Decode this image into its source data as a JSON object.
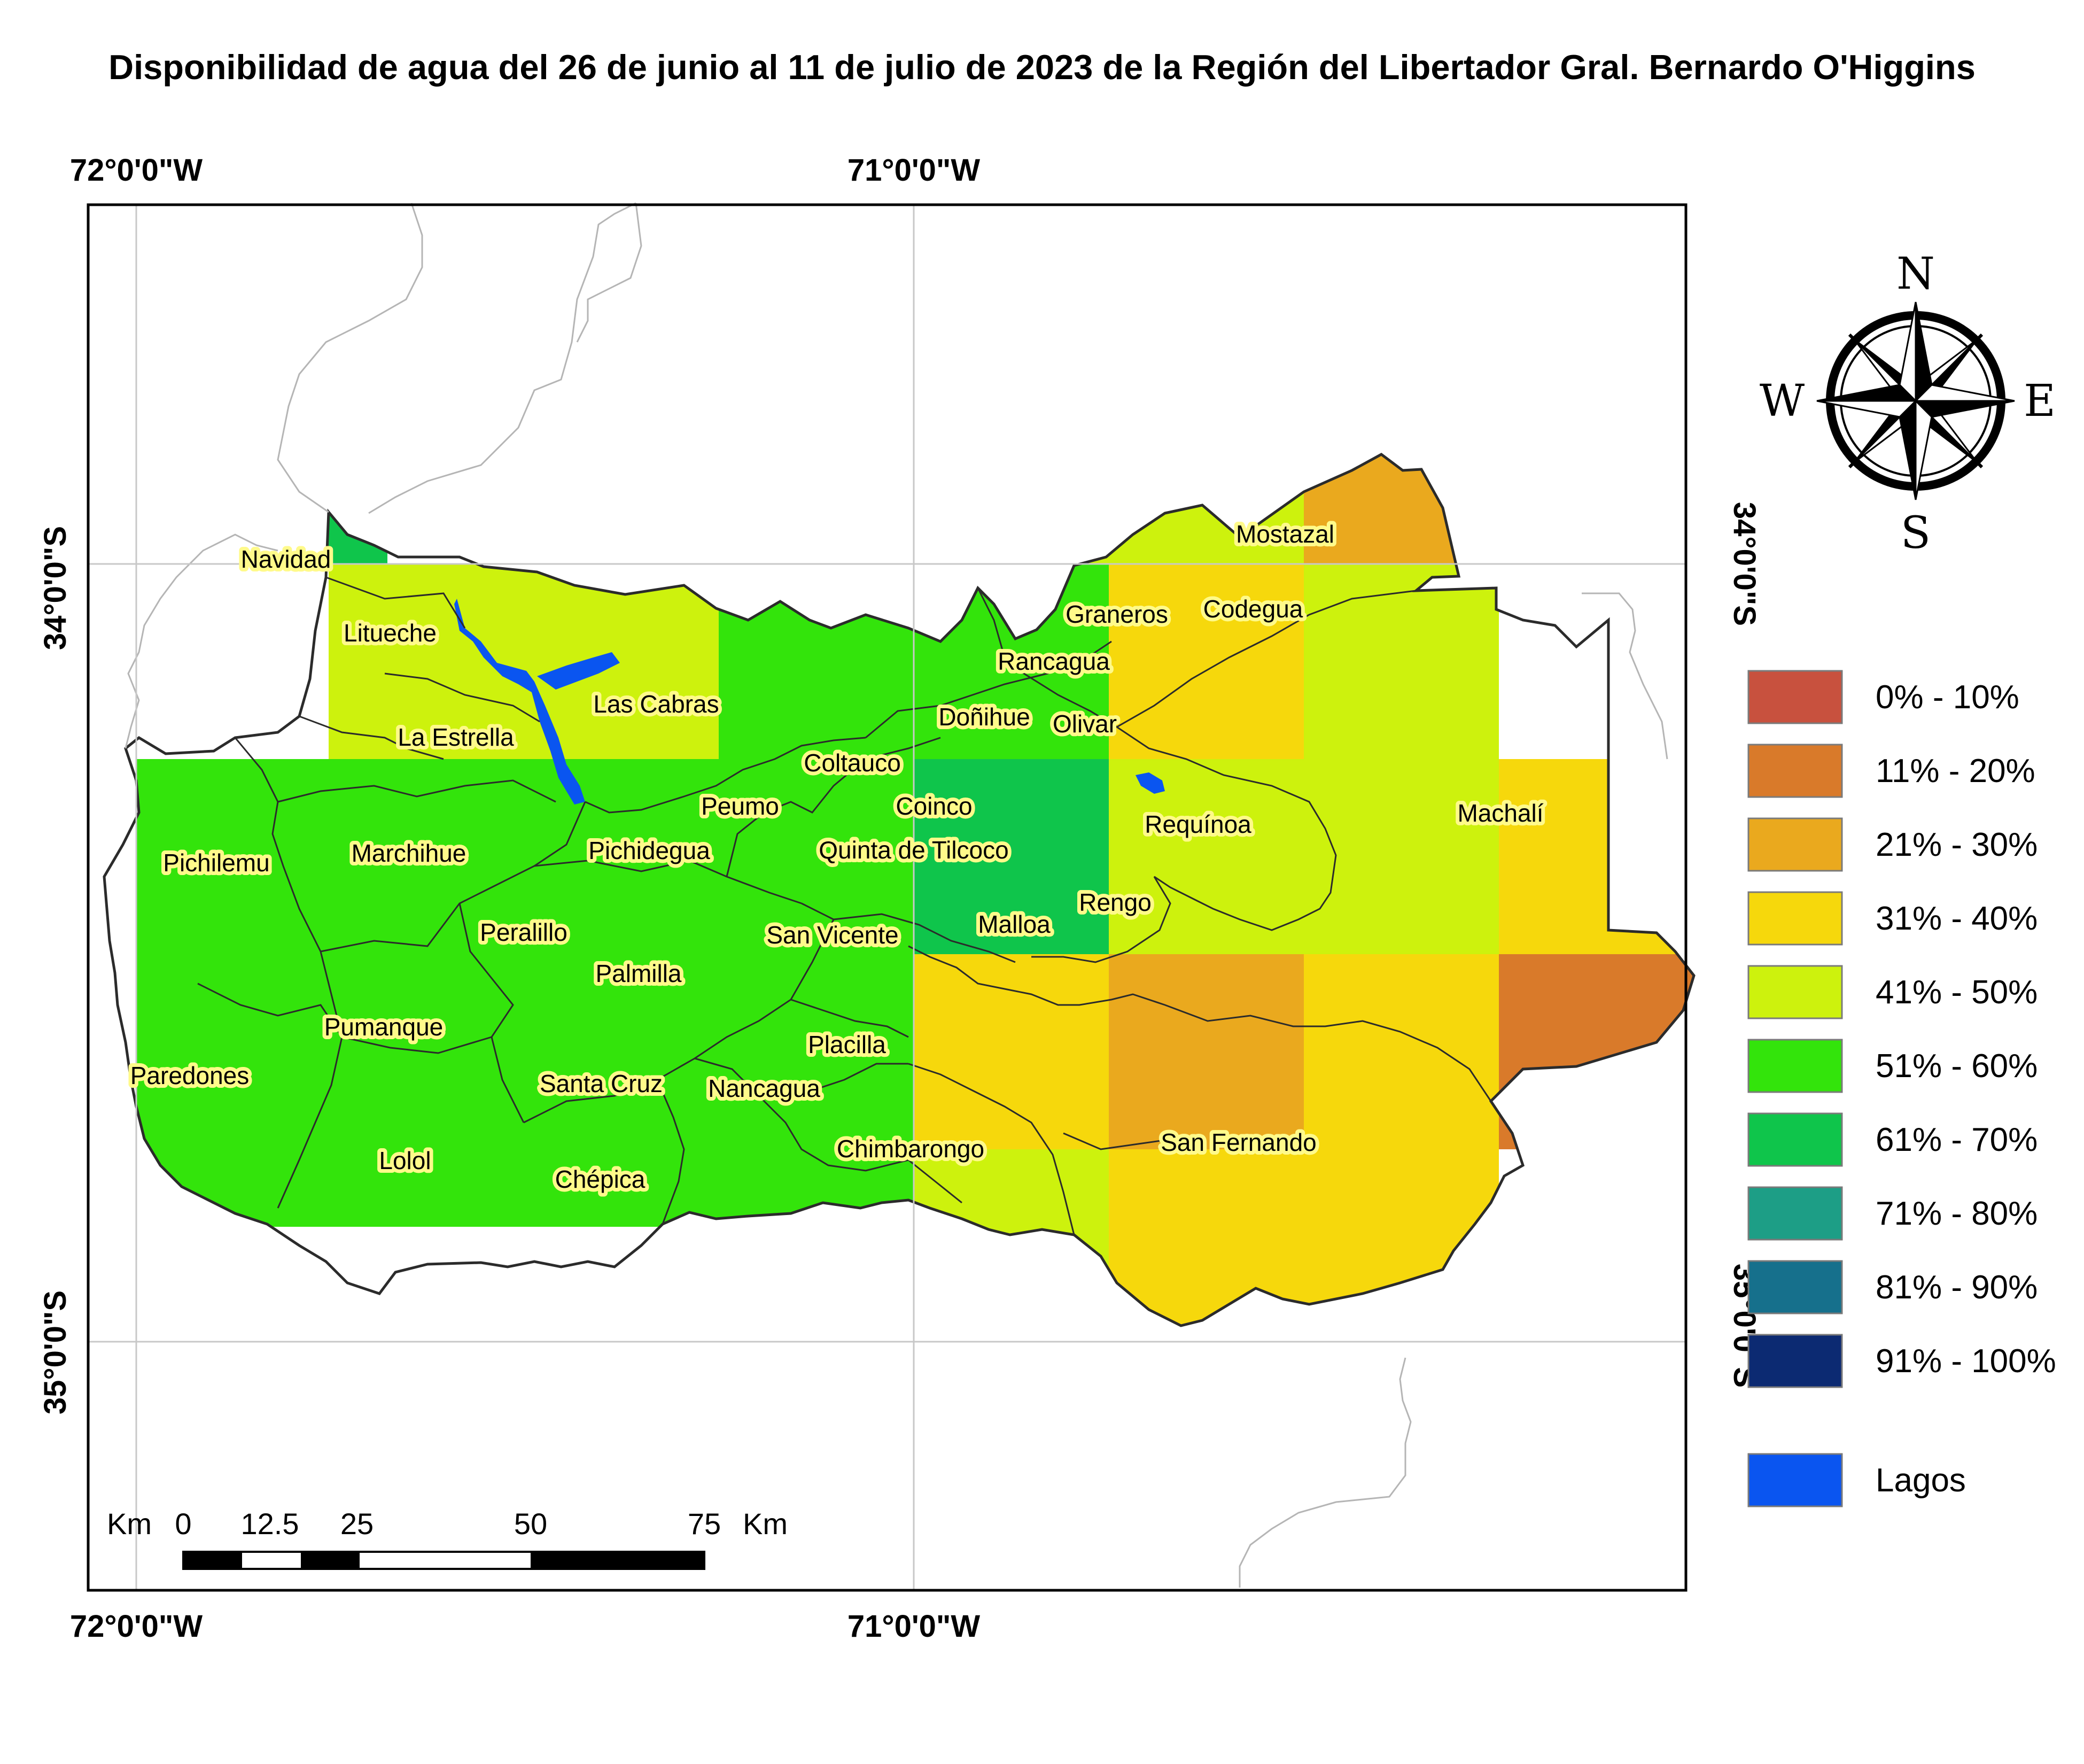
{
  "title": "Disponibilidad de agua del 26 de junio al 11 de julio de 2023 de la Región del Libertador Gral. Bernardo O'Higgins",
  "graticule": {
    "lon_top": [
      "72°0'0\"W",
      "71°0'0\"W"
    ],
    "lon_bottom": [
      "72°0'0\"W",
      "71°0'0\"W"
    ],
    "lat_left": [
      "34°0'0\"S",
      "35°0'0\"S"
    ],
    "lat_right": [
      "34°0'0\"S",
      "35°0'0\"S"
    ]
  },
  "compass": {
    "n": "N",
    "s": "S",
    "e": "E",
    "w": "W"
  },
  "legend": [
    {
      "label": "0% - 10%",
      "color": "#c8513e"
    },
    {
      "label": "11% - 20%",
      "color": "#d97a2a"
    },
    {
      "label": "21% - 30%",
      "color": "#eaa91e"
    },
    {
      "label": "31% - 40%",
      "color": "#f6d80c"
    },
    {
      "label": "41% - 50%",
      "color": "#cdf20d"
    },
    {
      "label": "51% - 60%",
      "color": "#33e40b"
    },
    {
      "label": "61% - 70%",
      "color": "#0fc54b"
    },
    {
      "label": "71% - 80%",
      "color": "#1d9e86"
    },
    {
      "label": "81% - 90%",
      "color": "#16708c"
    },
    {
      "label": "91% - 100%",
      "color": "#0c2a72"
    }
  ],
  "lakes_label": "Lagos",
  "lakes_color": "#0a55f0",
  "scale": {
    "unit": "Km",
    "ticks": [
      "0",
      "12.5",
      "25",
      "50",
      "75"
    ]
  },
  "towns": [
    "Navidad",
    "Litueche",
    "Las Cabras",
    "La Estrella",
    "Pichilemu",
    "Marchihue",
    "Pichidegua",
    "Peumo",
    "Coltauco",
    "Coinco",
    "Quinta de Tilcoco",
    "Doñihue",
    "Olivar",
    "Rancagua",
    "Graneros",
    "Codegua",
    "Mostazal",
    "Requínoa",
    "Machalí",
    "Rengo",
    "Malloa",
    "San Vicente",
    "Peralillo",
    "Palmilla",
    "Pumanque",
    "Paredones",
    "Santa Cruz",
    "Nancagua",
    "Placilla",
    "Chimbarongo",
    "San Fernando",
    "Lolol",
    "Chépica"
  ]
}
